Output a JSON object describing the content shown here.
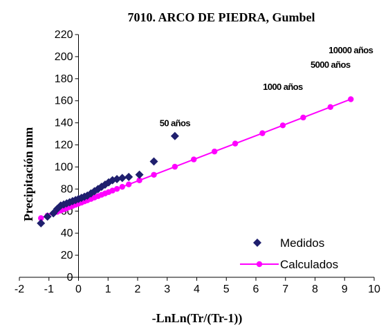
{
  "chart_data": {
    "type": "scatter",
    "title": "7010. ARCO DE PIEDRA, Gumbel",
    "xlabel": "-LnLn(Tr/(Tr-1))",
    "ylabel": "Precipitación mm",
    "xlim": [
      -2,
      10
    ],
    "ylim": [
      0,
      220
    ],
    "xticks": [
      "-2",
      "-1",
      "0",
      "1",
      "2",
      "3",
      "4",
      "5",
      "6",
      "7",
      "8",
      "9",
      "10"
    ],
    "yticks": [
      "0",
      "20",
      "40",
      "60",
      "80",
      "100",
      "120",
      "140",
      "160",
      "180",
      "200",
      "220"
    ],
    "grid": false,
    "legend_position": "bottom-right",
    "series": [
      {
        "name": "Medidos",
        "marker": "diamond",
        "color": "#1f1f6e",
        "x": [
          -1.27,
          -1.05,
          -0.85,
          -0.72,
          -0.6,
          -0.5,
          -0.4,
          -0.3,
          -0.2,
          -0.1,
          0.0,
          0.1,
          0.2,
          0.3,
          0.42,
          0.54,
          0.66,
          0.78,
          0.9,
          1.02,
          1.15,
          1.3,
          1.48,
          1.7,
          2.06,
          2.55,
          3.26
        ],
        "y": [
          49,
          55,
          58,
          62,
          65,
          66,
          67,
          68,
          69,
          70,
          71,
          72,
          73,
          74,
          76,
          78,
          80,
          82,
          84,
          86,
          88,
          89,
          90,
          91,
          93,
          105,
          128
        ]
      },
      {
        "name": "Calculados",
        "marker": "circle-line",
        "color": "#ff00ff",
        "x": [
          -1.27,
          -1.05,
          -0.85,
          -0.72,
          -0.6,
          -0.5,
          -0.4,
          -0.3,
          -0.2,
          -0.1,
          0.0,
          0.1,
          0.2,
          0.3,
          0.42,
          0.54,
          0.66,
          0.78,
          0.9,
          1.02,
          1.15,
          1.3,
          1.48,
          1.7,
          2.06,
          2.55,
          3.26,
          3.9,
          4.6,
          5.3,
          6.22,
          6.91,
          7.6,
          8.52,
          9.21
        ],
        "y": [
          53.6,
          55.9,
          57.9,
          59.3,
          60.5,
          61.5,
          62.6,
          63.6,
          64.7,
          65.7,
          66.7,
          67.7,
          68.8,
          69.8,
          71.0,
          72.3,
          73.5,
          74.8,
          76.0,
          77.2,
          78.6,
          80.1,
          82.0,
          84.2,
          87.9,
          92.9,
          100.2,
          106.8,
          114.0,
          121.2,
          130.6,
          137.7,
          144.8,
          154.3,
          161.4
        ]
      }
    ],
    "annotations": [
      {
        "text": "50 años",
        "x": 3.26,
        "y": 137
      },
      {
        "text": "1000 años",
        "x": 6.91,
        "y": 170
      },
      {
        "text": "5000 años",
        "x": 8.52,
        "y": 190
      },
      {
        "text": "10000 años",
        "x": 9.21,
        "y": 203
      }
    ]
  }
}
